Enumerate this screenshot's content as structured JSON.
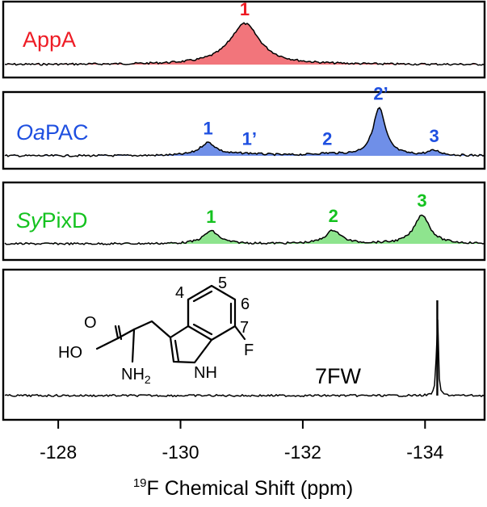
{
  "chart_data": {
    "type": "line",
    "xlabel_sup": "19",
    "xlabel_main": "F Chemical Shift (ppm)",
    "xlim": [
      -127.1,
      -135.0
    ],
    "x_reversed": true,
    "x_ticks": [
      -128,
      -130,
      -132,
      -134
    ],
    "x_tick_labels": [
      "-128",
      "-130",
      "-132",
      "-134"
    ],
    "panels": [
      {
        "label_parts": [
          {
            "text": "AppA",
            "italic": false
          }
        ],
        "color": "#ee1c25",
        "fill_color": "#f2757b",
        "peaks": [
          {
            "label": "1",
            "center": -131.05,
            "height": 0.82,
            "width": 0.3
          }
        ]
      },
      {
        "label_parts": [
          {
            "text": "Oa",
            "italic": true
          },
          {
            "text": "PAC",
            "italic": false
          }
        ],
        "color": "#1e4fe0",
        "fill_color": "#6f8fe8",
        "peaks": [
          {
            "label": "1",
            "center": -130.45,
            "height": 0.22,
            "width": 0.16
          },
          {
            "label": "1’",
            "center": -131.1,
            "height": 0.03,
            "width": 0.35
          },
          {
            "label": "2",
            "center": -132.4,
            "height": 0.03,
            "width": 0.3
          },
          {
            "label": "2’",
            "center": -133.25,
            "height": 0.82,
            "width": 0.12
          },
          {
            "label": "3",
            "center": -134.15,
            "height": 0.08,
            "width": 0.13
          }
        ]
      },
      {
        "label_parts": [
          {
            "text": "Sy",
            "italic": true
          },
          {
            "text": "PixD",
            "italic": false
          }
        ],
        "color": "#14c21f",
        "fill_color": "#8ee48e",
        "peaks": [
          {
            "label": "1",
            "center": -130.5,
            "height": 0.22,
            "width": 0.15
          },
          {
            "label": "2",
            "center": -132.5,
            "height": 0.23,
            "width": 0.15
          },
          {
            "label": "3",
            "center": -133.95,
            "height": 0.5,
            "width": 0.15
          }
        ]
      },
      {
        "label_parts": [
          {
            "text": "7FW",
            "italic": false
          }
        ],
        "color": "#000000",
        "fill_color": "none",
        "peaks": [
          {
            "label": "",
            "center": -134.2,
            "height": 1.0,
            "width": 0.015
          }
        ]
      }
    ],
    "molecule_labels": {
      "ho": "HO",
      "o": "O",
      "nh2_main": "NH",
      "nh2_sub": "2",
      "nh": "NH",
      "f": "F",
      "pos4": "4",
      "pos5": "5",
      "pos6": "6",
      "pos7": "7"
    }
  }
}
